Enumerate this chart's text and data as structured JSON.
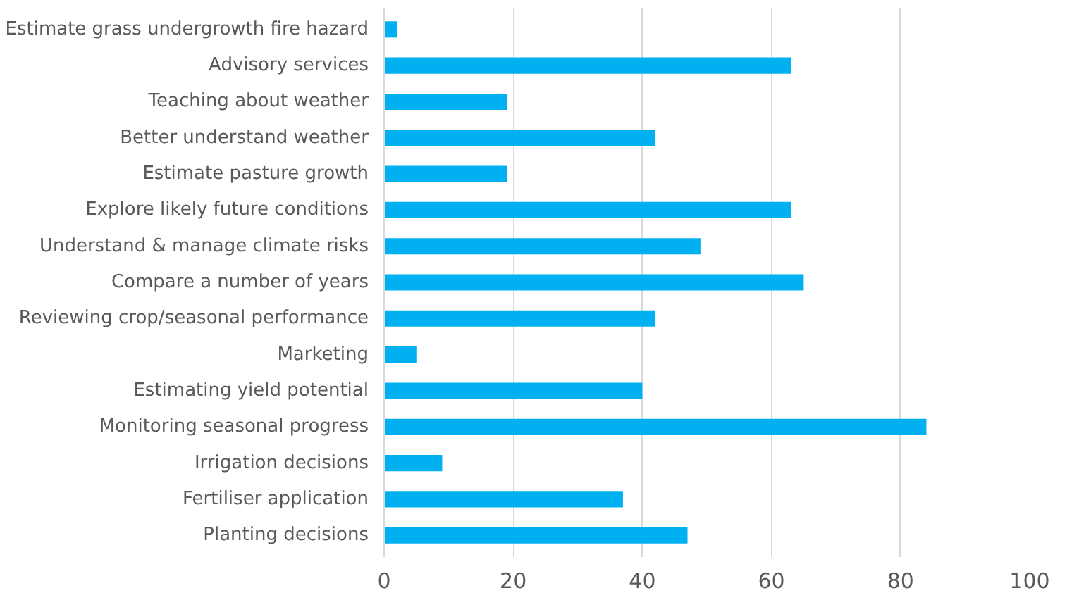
{
  "chart_data": {
    "type": "bar",
    "orientation": "horizontal",
    "categories": [
      "Estimate grass undergrowth fire hazard",
      "Advisory services",
      "Teaching about weather",
      "Better understand weather",
      "Estimate pasture growth",
      "Explore likely future conditions",
      "Understand & manage climate risks",
      "Compare a number of years",
      "Reviewing crop/seasonal performance",
      "Marketing",
      "Estimating yield potential",
      "Monitoring seasonal progress",
      "Irrigation decisions",
      "Fertiliser application",
      "Planting decisions"
    ],
    "values": [
      2,
      63,
      19,
      42,
      19,
      63,
      49,
      65,
      42,
      5,
      40,
      84,
      9,
      37,
      47
    ],
    "color": "#00b0f0",
    "xlim": [
      0,
      100
    ],
    "xticks": [
      0,
      20,
      40,
      60,
      80,
      100
    ],
    "grid": "x"
  }
}
